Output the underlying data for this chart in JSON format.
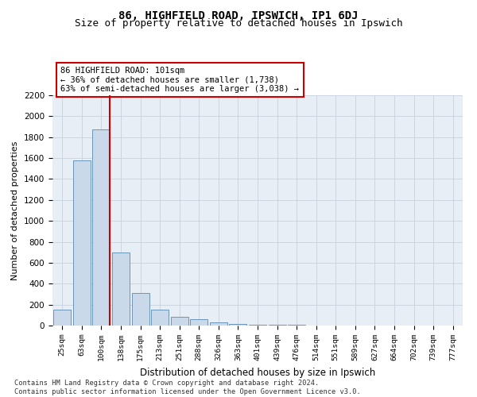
{
  "title": "86, HIGHFIELD ROAD, IPSWICH, IP1 6DJ",
  "subtitle": "Size of property relative to detached houses in Ipswich",
  "xlabel": "Distribution of detached houses by size in Ipswich",
  "ylabel": "Number of detached properties",
  "bar_color": "#c9d9ea",
  "bar_edge_color": "#5a8ab0",
  "background_color": "#e8eef5",
  "categories": [
    "25sqm",
    "63sqm",
    "100sqm",
    "138sqm",
    "175sqm",
    "213sqm",
    "251sqm",
    "288sqm",
    "326sqm",
    "363sqm",
    "401sqm",
    "439sqm",
    "476sqm",
    "514sqm",
    "551sqm",
    "589sqm",
    "627sqm",
    "664sqm",
    "702sqm",
    "739sqm",
    "777sqm"
  ],
  "values": [
    150,
    1575,
    1875,
    700,
    310,
    155,
    80,
    60,
    30,
    15,
    10,
    5,
    5,
    3,
    2,
    0,
    0,
    0,
    0,
    0,
    0
  ],
  "ylim": [
    0,
    2200
  ],
  "yticks": [
    0,
    200,
    400,
    600,
    800,
    1000,
    1200,
    1400,
    1600,
    1800,
    2000,
    2200
  ],
  "property_line_index": 2,
  "bar_width": 0.9,
  "annotation_line1": "86 HIGHFIELD ROAD: 101sqm",
  "annotation_line2": "← 36% of detached houses are smaller (1,738)",
  "annotation_line3": "63% of semi-detached houses are larger (3,038) →",
  "annotation_box_facecolor": "#ffffff",
  "annotation_box_edgecolor": "#cc0000",
  "footnote_line1": "Contains HM Land Registry data © Crown copyright and database right 2024.",
  "footnote_line2": "Contains public sector information licensed under the Open Government Licence v3.0.",
  "red_line_color": "#cc0000",
  "grid_color": "#c0ccd8",
  "title_fontsize": 10,
  "subtitle_fontsize": 9
}
